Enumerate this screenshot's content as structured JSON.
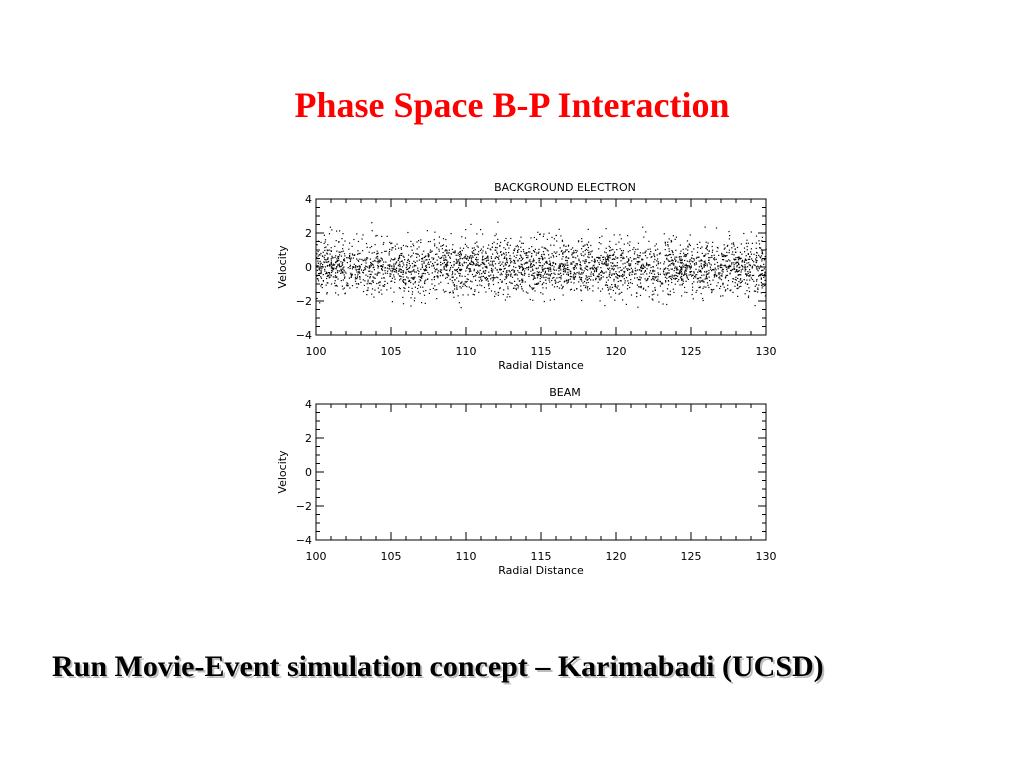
{
  "slide": {
    "title": "Phase Space B-P Interaction",
    "caption": "Run Movie-Event simulation concept – Karimabadi (UCSD)"
  },
  "colors": {
    "title": "#ff0000",
    "points": "#000000",
    "caption_shadow": "#bdbdbd"
  },
  "chart_data": [
    {
      "type": "scatter",
      "title": "BACKGROUND ELECTRON",
      "xlabel": "Radial Distance",
      "ylabel": "Velocity",
      "xlim": [
        100,
        130
      ],
      "ylim": [
        -4,
        4
      ],
      "xticks": [
        100,
        105,
        110,
        115,
        120,
        125,
        130
      ],
      "yticks": [
        -4,
        -2,
        0,
        2,
        4
      ],
      "xtick_labels": [
        "100",
        "105",
        "110",
        "115",
        "120",
        "125",
        "130"
      ],
      "ytick_labels": [
        "−4",
        "−2",
        "0",
        "2",
        "4"
      ],
      "grid": false,
      "series": [
        {
          "distribution": "dense noise band",
          "x_range": [
            100,
            130
          ],
          "y_mean": 0.0,
          "y_std": 0.8,
          "y_clip": [
            -2.6,
            2.8
          ],
          "point_count": 3200
        }
      ]
    },
    {
      "type": "scatter",
      "title": "BEAM",
      "xlabel": "Radial Distance",
      "ylabel": "Velocity",
      "xlim": [
        100,
        130
      ],
      "ylim": [
        -4,
        4
      ],
      "xticks": [
        100,
        105,
        110,
        115,
        120,
        125,
        130
      ],
      "yticks": [
        -4,
        -2,
        0,
        2,
        4
      ],
      "xtick_labels": [
        "100",
        "105",
        "110",
        "115",
        "120",
        "125",
        "130"
      ],
      "ytick_labels": [
        "−4",
        "−2",
        "0",
        "2",
        "4"
      ],
      "grid": false,
      "series": []
    }
  ]
}
